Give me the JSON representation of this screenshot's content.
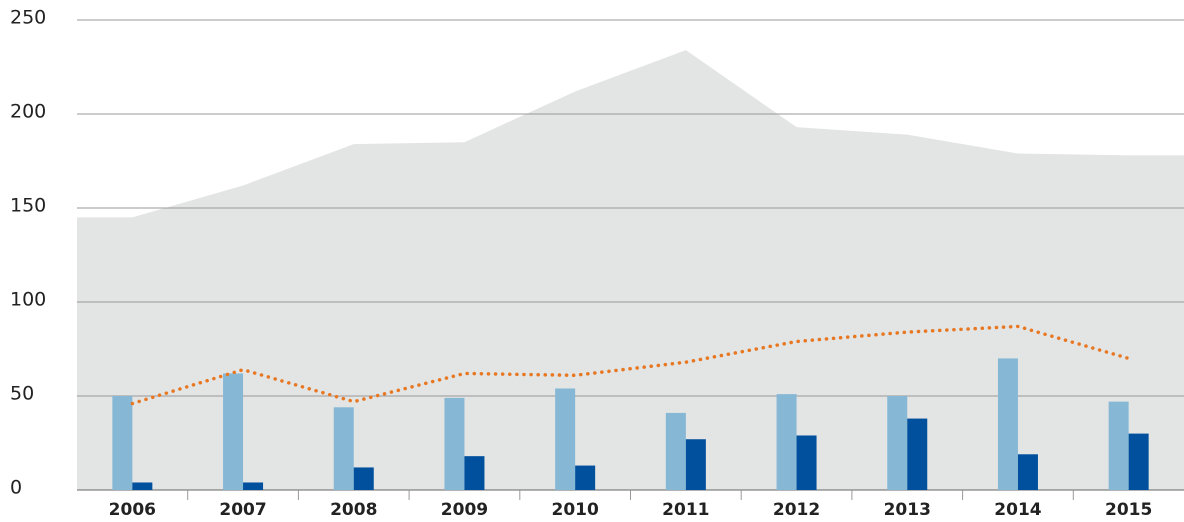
{
  "chart_data": {
    "type": "combo",
    "categories": [
      "2006",
      "2007",
      "2008",
      "2009",
      "2010",
      "2011",
      "2012",
      "2013",
      "2014",
      "2015"
    ],
    "series": [
      {
        "type": "area",
        "color": "#e3e4e4",
        "values": [
          145,
          162,
          184,
          185,
          212,
          234,
          193,
          189,
          179,
          178
        ]
      },
      {
        "type": "bar",
        "color": "#86b8d6",
        "values": [
          50,
          62,
          44,
          49,
          54,
          41,
          51,
          50,
          70,
          47
        ]
      },
      {
        "type": "bar",
        "color": "#00509e",
        "values": [
          4,
          4,
          12,
          18,
          13,
          27,
          29,
          38,
          19,
          30
        ]
      },
      {
        "type": "line",
        "color": "#e87722",
        "values": [
          46,
          64,
          47,
          62,
          61,
          68,
          79,
          84,
          87,
          70
        ]
      }
    ],
    "ylim": [
      0,
      250
    ],
    "yticks": [
      0,
      50,
      100,
      150,
      200,
      250
    ],
    "grid": true
  }
}
